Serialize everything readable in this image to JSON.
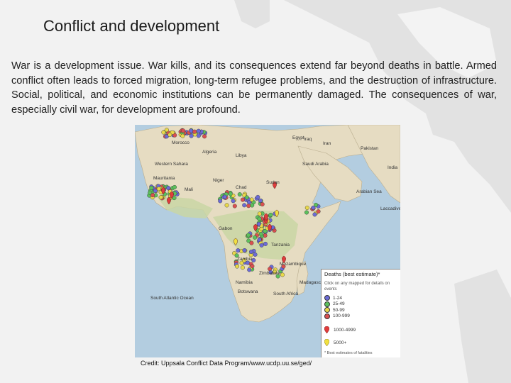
{
  "slide": {
    "title": "Conflict and development",
    "body": "War is a development issue. War kills, and its consequences extend far beyond deaths in battle. Armed conflict often leads to forced migration, long-term refugee problems, and the destruction of infrastructure. Social, political, and economic institutions can be permanently damaged. The consequences of war, especially civil war, for development are profound.",
    "credit": "Credit: Uppsala Conflict Data Program/www.ucdp.uu.se/ged/"
  },
  "map": {
    "place_labels": [
      "Morocco",
      "Algeria",
      "Libya",
      "Egypt",
      "Iraq",
      "Iran",
      "Pakistan",
      "Saudi Arabia",
      "India",
      "Western Sahara",
      "Mauritania",
      "Mali",
      "Niger",
      "Chad",
      "Sudan",
      "Arabian Sea",
      "Laccadive Sea",
      "Gabon",
      "Tanzania",
      "Zambia",
      "Zimbabwe",
      "Mozambique",
      "Namibia",
      "Botswana",
      "Madagascar",
      "South Africa",
      "South Atlantic Ocean"
    ],
    "legend": {
      "title": "Deaths (best estimate)*",
      "note": "Click on any mapped for details on events",
      "ranges": [
        {
          "label": "1-24",
          "color": "#6b6bd6"
        },
        {
          "label": "25-49",
          "color": "#5cc05c"
        },
        {
          "label": "50-99",
          "color": "#e8d84a"
        },
        {
          "label": "100-999",
          "color": "#d95050"
        }
      ],
      "markers": [
        {
          "label": "1000-4999",
          "color": "#e03c3c"
        },
        {
          "label": "5000+",
          "color": "#f0e040"
        }
      ],
      "footnote": "* Best estimates of fatalities"
    }
  }
}
